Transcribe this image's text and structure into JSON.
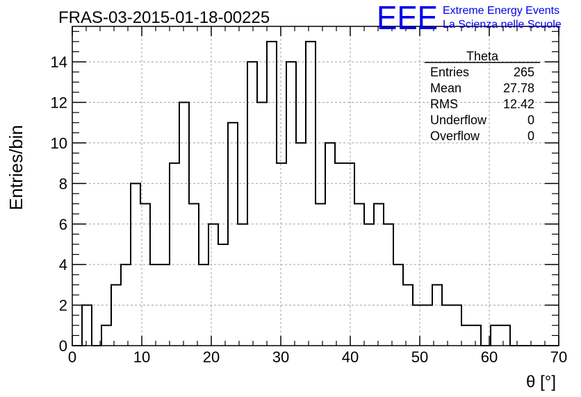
{
  "chart_data": {
    "type": "bar",
    "title": "FRAS-03-2015-01-18-00225",
    "xlabel": "θ [°]",
    "ylabel": "Entries/bin",
    "xlim": [
      0,
      70
    ],
    "ylim": [
      0,
      15.75
    ],
    "xticks": [
      "0",
      "10",
      "20",
      "30",
      "40",
      "50",
      "60",
      "70"
    ],
    "yticks": [
      "0",
      "2",
      "4",
      "6",
      "8",
      "10",
      "12",
      "14"
    ],
    "grid": true,
    "bin_width": 1.4,
    "values": [
      0,
      2,
      0,
      1,
      3,
      4,
      8,
      7,
      4,
      4,
      9,
      12,
      7,
      4,
      6,
      5,
      11,
      6,
      14,
      12,
      15,
      9,
      14,
      10,
      15,
      7,
      10,
      9,
      9,
      7,
      6,
      7,
      6,
      4,
      3,
      2,
      2,
      3,
      2,
      2,
      1,
      1,
      0,
      1,
      1,
      0,
      0,
      0,
      0,
      0
    ],
    "stats": {
      "name": "Theta",
      "rows": [
        {
          "label": "Entries",
          "value": "265"
        },
        {
          "label": "Mean",
          "value": "27.78"
        },
        {
          "label": "RMS",
          "value": "12.42"
        },
        {
          "label": "Underflow",
          "value": "0"
        },
        {
          "label": "Overflow",
          "value": "0"
        }
      ]
    }
  },
  "logo": {
    "mark": "EEE",
    "line1": "Extreme Energy Events",
    "line2": "La Scienza nelle Scuole",
    "color": "#0000ee"
  }
}
